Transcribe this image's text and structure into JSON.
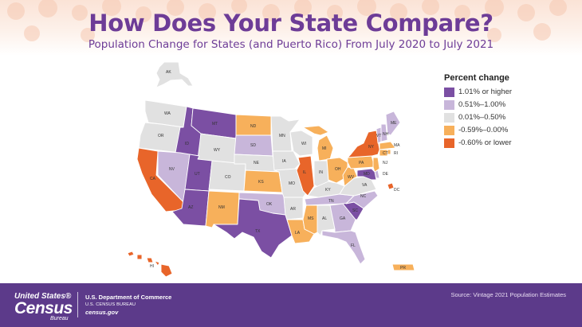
{
  "title": "How Does Your State Compare?",
  "subtitle": "Population Change for States (and Puerto Rico) From July 2020 to July 2021",
  "legend": {
    "title": "Percent change",
    "items": [
      {
        "label": "1.01% or higher",
        "color": "#7b4fa3"
      },
      {
        "label": "0.51%–1.00%",
        "color": "#c8b6da"
      },
      {
        "label": "0.01%–0.50%",
        "color": "#e1e1e1"
      },
      {
        "label": "-0.59%–0.00%",
        "color": "#f7b05b"
      },
      {
        "label": "-0.60% or lower",
        "color": "#e8652a"
      }
    ]
  },
  "footer": {
    "logo_top": "United States®",
    "logo_main": "Census",
    "logo_sub": "Bureau",
    "dept_line1": "U.S. Department of Commerce",
    "dept_line2": "U.S. CENSUS BUREAU",
    "dept_line3": "census.gov",
    "source": "Source:  Vintage 2021 Population Estimates"
  },
  "states": {
    "AK": "AK",
    "WA": "WA",
    "OR": "OR",
    "CA": "CA",
    "ID": "ID",
    "NV": "NV",
    "MT": "MT",
    "WY": "WY",
    "UT": "UT",
    "AZ": "AZ",
    "CO": "CO",
    "NM": "NM",
    "ND": "ND",
    "SD": "SD",
    "NE": "NE",
    "KS": "KS",
    "OK": "OK",
    "TX": "TX",
    "MN": "MN",
    "IA": "IA",
    "MO": "MO",
    "AR": "AR",
    "LA": "LA",
    "WI": "WI",
    "IL": "IL",
    "MI": "MI",
    "IN": "IN",
    "OH": "OH",
    "KY": "KY",
    "TN": "TN",
    "MS": "MS",
    "AL": "AL",
    "GA": "GA",
    "FL": "FL",
    "SC": "SC",
    "NC": "NC",
    "VA": "VA",
    "WV": "WV",
    "PA": "PA",
    "NY": "NY",
    "VT": "VT",
    "NH": "NH",
    "ME": "ME",
    "MA": "MA",
    "CT": "CT",
    "RI": "RI",
    "NJ": "NJ",
    "DE": "DE",
    "MD": "MD",
    "DC": "DC",
    "HI": "HI",
    "PR": "PR"
  }
}
